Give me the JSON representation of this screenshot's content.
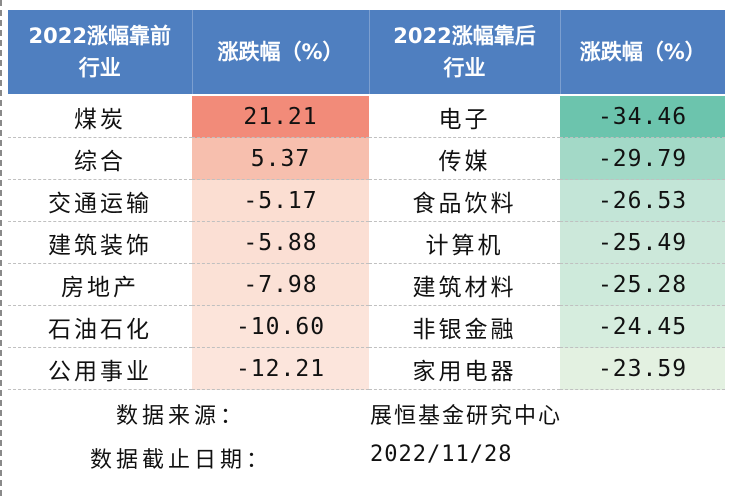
{
  "header": {
    "top_label_line1": "2022涨幅靠前",
    "top_label_line2": "行业",
    "top_change_label": "涨跌幅（%）",
    "bottom_label_line1": "2022涨幅靠后",
    "bottom_label_line2": "行业",
    "bottom_change_label": "涨跌幅（%）"
  },
  "rows": [
    {
      "top_name": "煤炭",
      "top_value": "21.21",
      "bottom_name": "电子",
      "bottom_value": "-34.46"
    },
    {
      "top_name": "综合",
      "top_value": "5.37",
      "bottom_name": "传媒",
      "bottom_value": "-29.79"
    },
    {
      "top_name": "交通运输",
      "top_value": "-5.17",
      "bottom_name": "食品饮料",
      "bottom_value": "-26.53"
    },
    {
      "top_name": "建筑装饰",
      "top_value": "-5.88",
      "bottom_name": "计算机",
      "bottom_value": "-25.49"
    },
    {
      "top_name": "房地产",
      "top_value": "-7.98",
      "bottom_name": "建筑材料",
      "bottom_value": "-25.28"
    },
    {
      "top_name": "石油石化",
      "top_value": "-10.60",
      "bottom_name": "非银金融",
      "bottom_value": "-24.45"
    },
    {
      "top_name": "公用事业",
      "top_value": "-12.21",
      "bottom_name": "家用电器",
      "bottom_value": "-23.59"
    }
  ],
  "colors": {
    "header_bg": "#4f7fc0",
    "top_value_fills": [
      "#f28b79",
      "#f7bfae",
      "#fbded2",
      "#fbdfd4",
      "#fbe1d6",
      "#fce4da",
      "#fce5dc"
    ],
    "bottom_value_fills": [
      "#6cc4ad",
      "#a3d9c7",
      "#c3e5d7",
      "#cce8da",
      "#ceeadb",
      "#d6edde",
      "#e3f1e1"
    ]
  },
  "footer": {
    "source_label": "数据来源：",
    "source_value": "展恒基金研究中心",
    "cutoff_label": "数据截止日期：",
    "cutoff_value": "2022/11/28"
  }
}
